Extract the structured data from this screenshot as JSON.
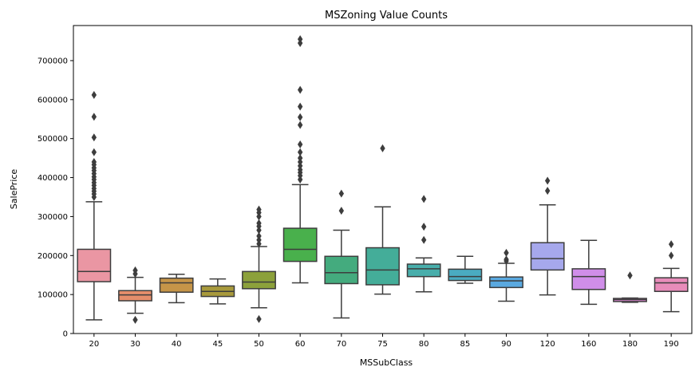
{
  "chart_data": {
    "type": "box",
    "title": "MSZoning Value Counts",
    "xlabel": "MSSubClass",
    "ylabel": "SalePrice",
    "ylim": [
      0,
      790000
    ],
    "yticks": [
      0,
      100000,
      200000,
      300000,
      400000,
      500000,
      600000,
      700000
    ],
    "categories": [
      "20",
      "30",
      "40",
      "45",
      "50",
      "60",
      "70",
      "75",
      "80",
      "85",
      "90",
      "120",
      "160",
      "180",
      "190"
    ],
    "series": [
      {
        "category": "20",
        "color": "#ea96a3",
        "whislo": 35000,
        "q1": 133000,
        "med": 159000,
        "q3": 216000,
        "whishi": 338000,
        "fliers": [
          350000,
          358000,
          365000,
          372000,
          380000,
          387000,
          395000,
          402000,
          410000,
          418000,
          425000,
          433000,
          440000,
          465000,
          503000,
          556000,
          612000
        ]
      },
      {
        "category": "30",
        "color": "#e58e6b",
        "whislo": 52000,
        "q1": 84000,
        "med": 99000,
        "q3": 110000,
        "whishi": 144000,
        "fliers": [
          35000,
          153000,
          162000
        ]
      },
      {
        "category": "40",
        "color": "#c69548",
        "whislo": 79000,
        "q1": 106000,
        "med": 130000,
        "q3": 142000,
        "whishi": 152000,
        "fliers": []
      },
      {
        "category": "45",
        "color": "#a89a3c",
        "whislo": 76000,
        "q1": 95000,
        "med": 108000,
        "q3": 122000,
        "whishi": 140000,
        "fliers": []
      },
      {
        "category": "50",
        "color": "#8ca13b",
        "whislo": 66000,
        "q1": 115000,
        "med": 132000,
        "q3": 159000,
        "whishi": 223000,
        "fliers": [
          37000,
          230000,
          240000,
          250000,
          265000,
          275000,
          283000,
          300000,
          310000,
          318000
        ]
      },
      {
        "category": "60",
        "color": "#49b04c",
        "whislo": 130000,
        "q1": 185000,
        "med": 216000,
        "q3": 270000,
        "whishi": 382000,
        "fliers": [
          395000,
          405000,
          413000,
          420000,
          430000,
          440000,
          450000,
          465000,
          485000,
          535000,
          555000,
          582000,
          625000,
          745000,
          755000
        ]
      },
      {
        "category": "70",
        "color": "#44ab7e",
        "whislo": 40000,
        "q1": 128000,
        "med": 156000,
        "q3": 198000,
        "whishi": 265000,
        "fliers": [
          315000,
          359000
        ]
      },
      {
        "category": "75",
        "color": "#44ad99",
        "whislo": 101000,
        "q1": 125000,
        "med": 163000,
        "q3": 220000,
        "whishi": 325000,
        "fliers": [
          475000
        ]
      },
      {
        "category": "80",
        "color": "#48aeab",
        "whislo": 107000,
        "q1": 146000,
        "med": 166000,
        "q3": 178000,
        "whishi": 194000,
        "fliers": [
          240000,
          274000,
          345000
        ]
      },
      {
        "category": "85",
        "color": "#4aabc1",
        "whislo": 129000,
        "q1": 136000,
        "med": 146000,
        "q3": 165000,
        "whishi": 198000,
        "fliers": []
      },
      {
        "category": "90",
        "color": "#5aa9e0",
        "whislo": 83000,
        "q1": 118000,
        "med": 135000,
        "q3": 145000,
        "whishi": 180000,
        "fliers": [
          186000,
          190000,
          207000
        ]
      },
      {
        "category": "120",
        "color": "#a6a8ec",
        "whislo": 99000,
        "q1": 163000,
        "med": 192000,
        "q3": 233000,
        "whishi": 330000,
        "fliers": [
          366000,
          392000
        ]
      },
      {
        "category": "160",
        "color": "#d08ee9",
        "whislo": 75000,
        "q1": 113000,
        "med": 146000,
        "q3": 166000,
        "whishi": 239000,
        "fliers": []
      },
      {
        "category": "180",
        "color": "#e288d6",
        "whislo": 80000,
        "q1": 82000,
        "med": 87000,
        "q3": 90000,
        "whishi": 91000,
        "fliers": [
          149000
        ]
      },
      {
        "category": "190",
        "color": "#e88cba",
        "whislo": 56000,
        "q1": 108000,
        "med": 130000,
        "q3": 143000,
        "whishi": 167000,
        "fliers": [
          200000,
          229000
        ]
      }
    ]
  }
}
